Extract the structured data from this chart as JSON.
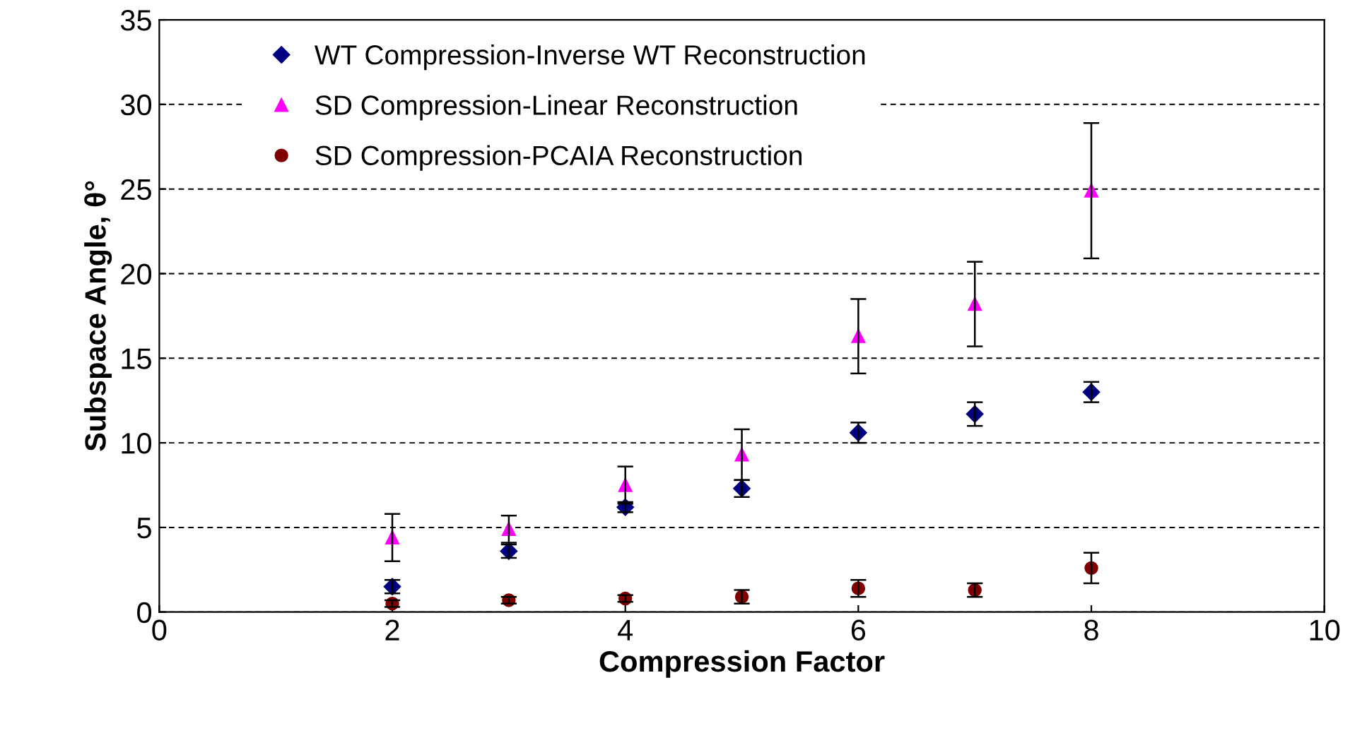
{
  "chart_data": {
    "type": "scatter",
    "xlabel": "Compression Factor",
    "ylabel": "Subspace Angle, θ°",
    "x": [
      2,
      3,
      4,
      5,
      6,
      7,
      8
    ],
    "xlim": [
      0,
      10
    ],
    "xticks": [
      0,
      2,
      4,
      6,
      8,
      10
    ],
    "ylim": [
      0,
      35
    ],
    "yticks": [
      0,
      5,
      10,
      15,
      20,
      25,
      30,
      35
    ],
    "grid": "y",
    "legend": "top left",
    "series": [
      {
        "name": "WT Compression-Inverse WT Reconstruction",
        "color": "#000080",
        "marker": "diamond",
        "values": [
          1.5,
          3.6,
          6.2,
          7.3,
          10.6,
          11.7,
          13.0
        ],
        "errors": [
          0.4,
          0.4,
          0.3,
          0.5,
          0.6,
          0.7,
          0.6
        ]
      },
      {
        "name": "SD Compression-Linear Reconstruction",
        "color": "#ff00ff",
        "marker": "triangle",
        "values": [
          4.4,
          4.9,
          7.5,
          9.3,
          16.3,
          18.2,
          24.9
        ],
        "errors": [
          1.4,
          0.8,
          1.1,
          1.5,
          2.2,
          2.5,
          4.0
        ]
      },
      {
        "name": "SD Compression-PCAIA Reconstruction",
        "color": "#800000",
        "marker": "circle",
        "values": [
          0.5,
          0.7,
          0.8,
          0.9,
          1.4,
          1.3,
          2.6
        ],
        "errors": [
          0.2,
          0.2,
          0.2,
          0.4,
          0.5,
          0.4,
          0.9
        ]
      }
    ]
  }
}
